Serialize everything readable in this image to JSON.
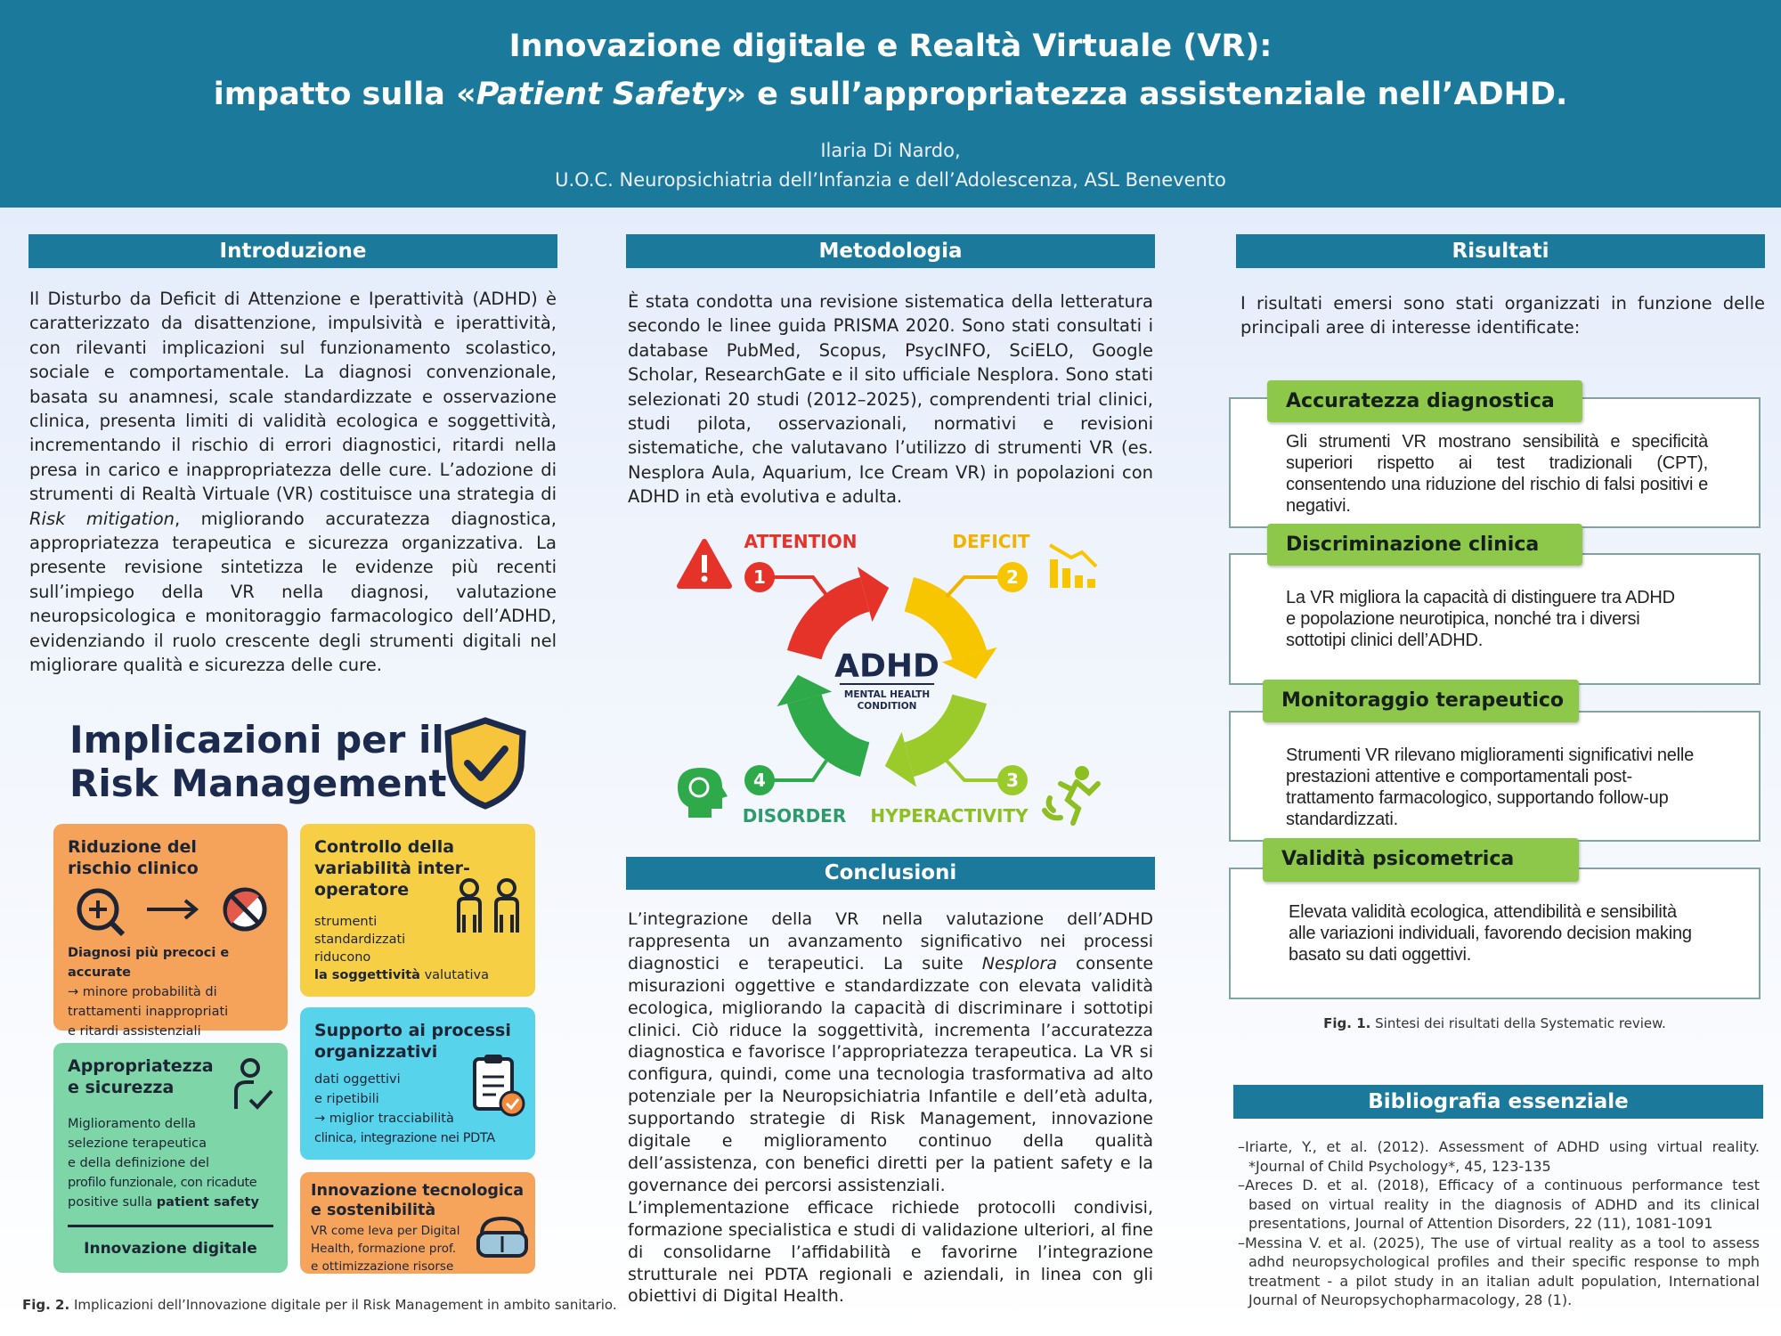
{
  "header": {
    "title_line1": "Innovazione digitale e Realtà Virtuale (VR):",
    "title_line2": {
      "before": "impatto sulla «",
      "emphasis": "Patient Safety",
      "after": "» e sull’appropriatezza assistenziale nell’ADHD."
    },
    "author": "Ilaria Di Nardo,",
    "affiliation": "U.O.C. Neuropsichiatria dell’Infanzia e dell’Adolescenza, ASL Benevento"
  },
  "introduzione": {
    "heading": "Introduzione",
    "before": "Il Disturbo da Deficit di Attenzione e Iperattività (ADHD) è caratterizzato da disattenzione, impulsività e iperattività, con rilevanti implicazioni sul funzionamento scolastico, sociale e comportamentale. La diagnosi convenzionale, basata su anamnesi, scale standardizzate e osservazione clinica, presenta limiti di validità ecologica e soggettività, incrementando il rischio di errori diagnostici, ritardi nella presa in carico e inappropriatezza delle cure. L’adozione di strumenti di Realtà Virtuale (VR) costituisce una strategia di ",
    "emphasis": "Risk mitigation",
    "after": ", migliorando accuratezza diagnostica, appropriatezza terapeutica e sicurezza organizzativa. La presente revisione sintetizza le evidenze più recenti sull’impiego della VR nella diagnosi, valutazione neuropsicologica e monitoraggio farmacologico dell’ADHD, evidenziando il ruolo crescente degli strumenti digitali nel migliorare qualità e sicurezza delle cure."
  },
  "figure2": {
    "title": [
      "Implicazioni per il",
      "Risk Management"
    ],
    "cards": [
      {
        "title": [
          "Riduzione del",
          "rischio clinico"
        ],
        "emphasis": "Diagnosi più precoci e accurate",
        "lines": [
          "→ minore probabilità di",
          "trattamenti inappropriati",
          "e ritardi assistenziali"
        ]
      },
      {
        "title": [
          "Controllo della",
          "variabilità inter-",
          "operatore"
        ],
        "lines": [
          "strumenti",
          "standardizzati",
          "riducono"
        ],
        "emphasis": "la soggettività",
        "tail": "valutativa"
      },
      {
        "title": [
          "Supporto ai processi",
          "organizzativi"
        ],
        "lines": [
          "dati oggettivi",
          "e ripetibili",
          "→ miglior tracciabilità",
          "clinica, integrazione nei PDTA"
        ]
      },
      {
        "title": [
          "Appropriatezza",
          "e sicurezza"
        ],
        "lines": [
          "Miglioramento della",
          "selezione terapeutica",
          "e della definizione del",
          "profilo funzionale, con ricadute",
          "positive sulla"
        ],
        "emphasis": "patient safety",
        "footer": "Innovazione digitale"
      },
      {
        "title": [
          "Innovazione tecnologica",
          "e sostenibilità"
        ],
        "lines": [
          "VR come leva per Digital",
          "Health, formazione prof.",
          "e ottimizzazione risorse"
        ]
      }
    ],
    "caption": {
      "label": "Fig. 2.",
      "text": "Implicazioni dell’Innovazione digitale per il Risk Management in ambito sanitario."
    }
  },
  "metodologia": {
    "heading": "Metodologia",
    "text": "È stata condotta una revisione sistematica della letteratura secondo le linee guida PRISMA 2020. Sono stati consultati i database PubMed, Scopus, PsycINFO, SciELO, Google Scholar, ResearchGate e il sito ufficiale Nesplora. Sono stati selezionati 20 studi (2012–2025), comprendenti trial clinici, studi pilota, osservazionali, normativi e revisioni sistematiche, che valutavano l’utilizzo di strumenti VR (es. Nesplora Aula, Aquarium, Ice Cream VR) in popolazioni con ADHD in età evolutiva e adulta."
  },
  "diagram": {
    "center": "ADHD",
    "subtitle": [
      "MENTAL HEALTH",
      "CONDITION"
    ],
    "steps": [
      {
        "number": "1",
        "label": "ATTENTION"
      },
      {
        "number": "2",
        "label": "DEFICIT"
      },
      {
        "number": "3",
        "label": "HYPERACTIVITY"
      },
      {
        "number": "4",
        "label": "DISORDER"
      }
    ]
  },
  "conclusioni": {
    "heading": "Conclusioni",
    "paragraph1": {
      "before": "L’integrazione della VR nella valutazione dell’ADHD rappresenta un avanzamento significativo nei processi diagnostici e terapeutici. La suite ",
      "emphasis": "Nesplora",
      "after": " consente misurazioni oggettive e standardizzate con elevata validità ecologica, migliorando la capacità di discriminare i sottotipi clinici. Ciò riduce la soggettività, incrementa l’accuratezza diagnostica e favorisce l’appropriatezza terapeutica. La VR si configura, quindi, come una tecnologia trasformativa ad alto potenziale per la Neuropsichiatria Infantile e dell’età adulta, supportando strategie di Risk Management, innovazione digitale e miglioramento continuo della qualità dell’assistenza, con benefici diretti per la patient safety e la governance dei percorsi assistenziali."
    },
    "paragraph2": "L’implementazione efficace richiede protocolli condivisi, formazione specialistica e studi di validazione ulteriori, al fine di consolidarne l’affidabilità e favorirne l’integrazione strutturale nei PDTA regionali e aziendali, in linea con gli obiettivi di Digital Health."
  },
  "risultati": {
    "heading": "Risultati",
    "intro": "I risultati emersi sono stati organizzati in funzione delle principali aree di interesse identificate:",
    "boxes": [
      {
        "title": "Accuratezza diagnostica",
        "text": "Gli strumenti VR mostrano sensibilità e specificità superiori rispetto ai test tradizionali (CPT), consentendo una riduzione del rischio di falsi positivi e negativi."
      },
      {
        "title": "Discriminazione clinica",
        "text": "La VR migliora la capacità di distinguere tra ADHD e popolazione neurotipica, nonché tra i diversi sottotipi clinici dell’ADHD."
      },
      {
        "title": "Monitoraggio terapeutico",
        "text": "Strumenti VR rilevano miglioramenti significativi nelle prestazioni attentive e comportamentali post-trattamento farmacologico, supportando follow-up standardizzati."
      },
      {
        "title": "Validità psicometrica",
        "text": "Elevata validità ecologica, attendibilità e sensibilità alle variazioni individuali, favorendo decision making basato su dati oggettivi."
      }
    ],
    "caption": {
      "label": "Fig. 1.",
      "text": "Sintesi dei risultati della Systematic review."
    }
  },
  "bibliografia": {
    "heading": "Bibliografia essenziale",
    "references": [
      "–Iriarte, Y., et al. (2012). Assessment of ADHD using virtual reality. *Journal of Child Psychology*, 45, 123-135",
      "–Areces D. et al. (2018), Efficacy of a continuous performance test based on virtual reality in the diagnosis of ADHD and its clinical presentations, Journal of Attention Disorders, 22 (11), 1081-1091",
      "–Messina V. et al. (2025), The use of virtual reality as a tool to assess adhd neuropsychological profiles and their specific response to mph treatment - a pilot study in an italian adult population, International Journal of Neuropsychopharmacology, 28 (1)."
    ]
  }
}
